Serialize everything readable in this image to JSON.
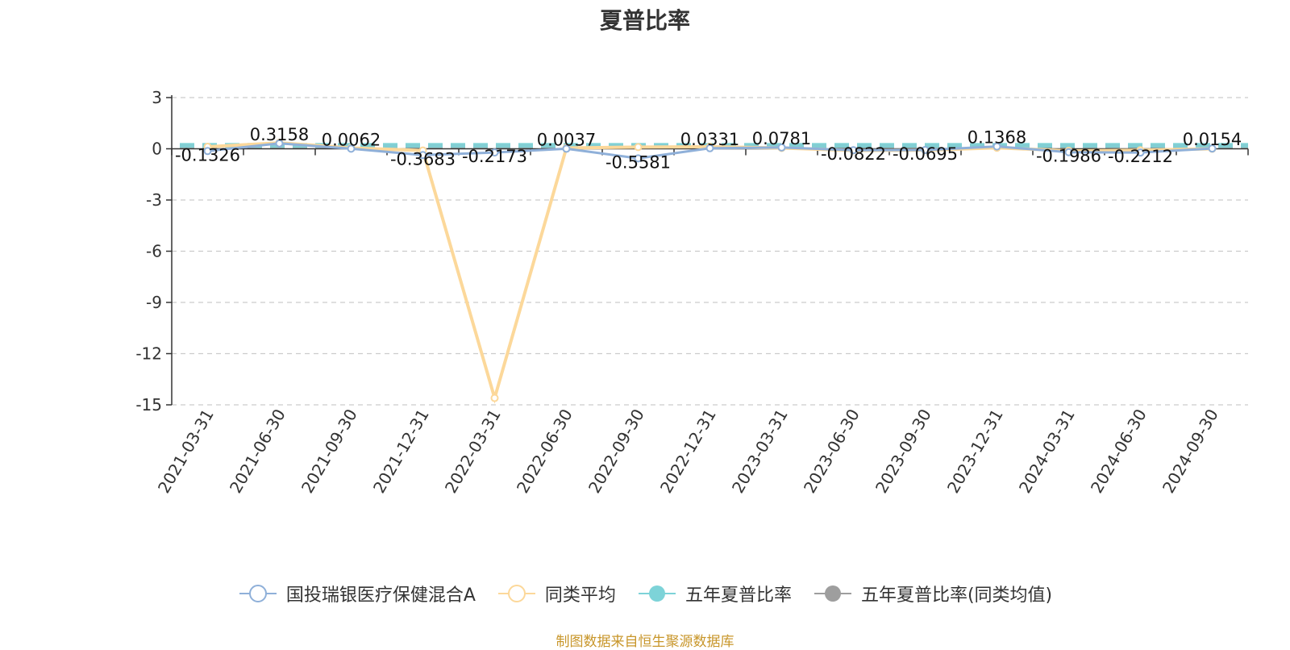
{
  "chart_data": {
    "type": "line",
    "title": "夏普比率",
    "xlabel": "",
    "ylabel": "",
    "ylim": [
      -15,
      3
    ],
    "yticks": [
      3,
      0,
      -3,
      -6,
      -9,
      -12,
      -15
    ],
    "categories": [
      "2021-03-31",
      "2021-06-30",
      "2021-09-30",
      "2021-12-31",
      "2022-03-31",
      "2022-06-30",
      "2022-09-30",
      "2022-12-31",
      "2023-03-31",
      "2023-06-30",
      "2023-09-30",
      "2023-12-31",
      "2024-03-31",
      "2024-06-30",
      "2024-09-30"
    ],
    "grid": true,
    "legend_position": "bottom",
    "series": [
      {
        "name": "国投瑞银医疗保健混合A",
        "color": "#8fb0d9",
        "marker": "hollow-circle",
        "values": [
          -0.1326,
          0.3158,
          0.0062,
          -0.3683,
          -0.2173,
          0.0037,
          -0.5581,
          0.0331,
          0.0781,
          -0.0822,
          -0.0695,
          0.1368,
          -0.1986,
          -0.2212,
          0.0154
        ]
      },
      {
        "name": "同类平均",
        "color": "#fcd89a",
        "marker": "hollow-circle",
        "values": [
          0.12,
          0.35,
          0.05,
          -0.1,
          -14.6,
          0.05,
          0.1,
          0.12,
          0.05,
          -0.1,
          -0.08,
          0.06,
          -0.12,
          -0.08,
          0.0
        ]
      },
      {
        "name": "五年夏普比率",
        "color": "#7dd3d8",
        "marker": "filled-circle",
        "values": [
          0.2,
          0.2,
          0.2,
          0.2,
          0.2,
          0.2,
          0.2,
          0.2,
          0.2,
          0.2,
          0.2,
          0.2,
          0.2,
          0.2,
          0.2
        ]
      },
      {
        "name": "五年夏普比率(同类均值)",
        "color": "#9e9e9e",
        "marker": "filled-circle",
        "values": [
          0.15,
          0.15,
          0.15,
          0.15,
          0.15,
          0.15,
          0.15,
          0.15,
          0.15,
          0.15,
          0.15,
          0.15,
          0.15,
          0.15,
          0.15
        ]
      }
    ],
    "data_labels": [
      "-0.1326",
      "0.3158",
      "0.0062",
      "-0.3683",
      "-0.2173",
      "0.0037",
      "-0.5581",
      "0.0331",
      "0.0781",
      "-0.0822",
      "-0.0695",
      "0.1368",
      "-0.1986",
      "-0.2212",
      "0.0154"
    ]
  },
  "source_note": "制图数据来自恒生聚源数据库"
}
